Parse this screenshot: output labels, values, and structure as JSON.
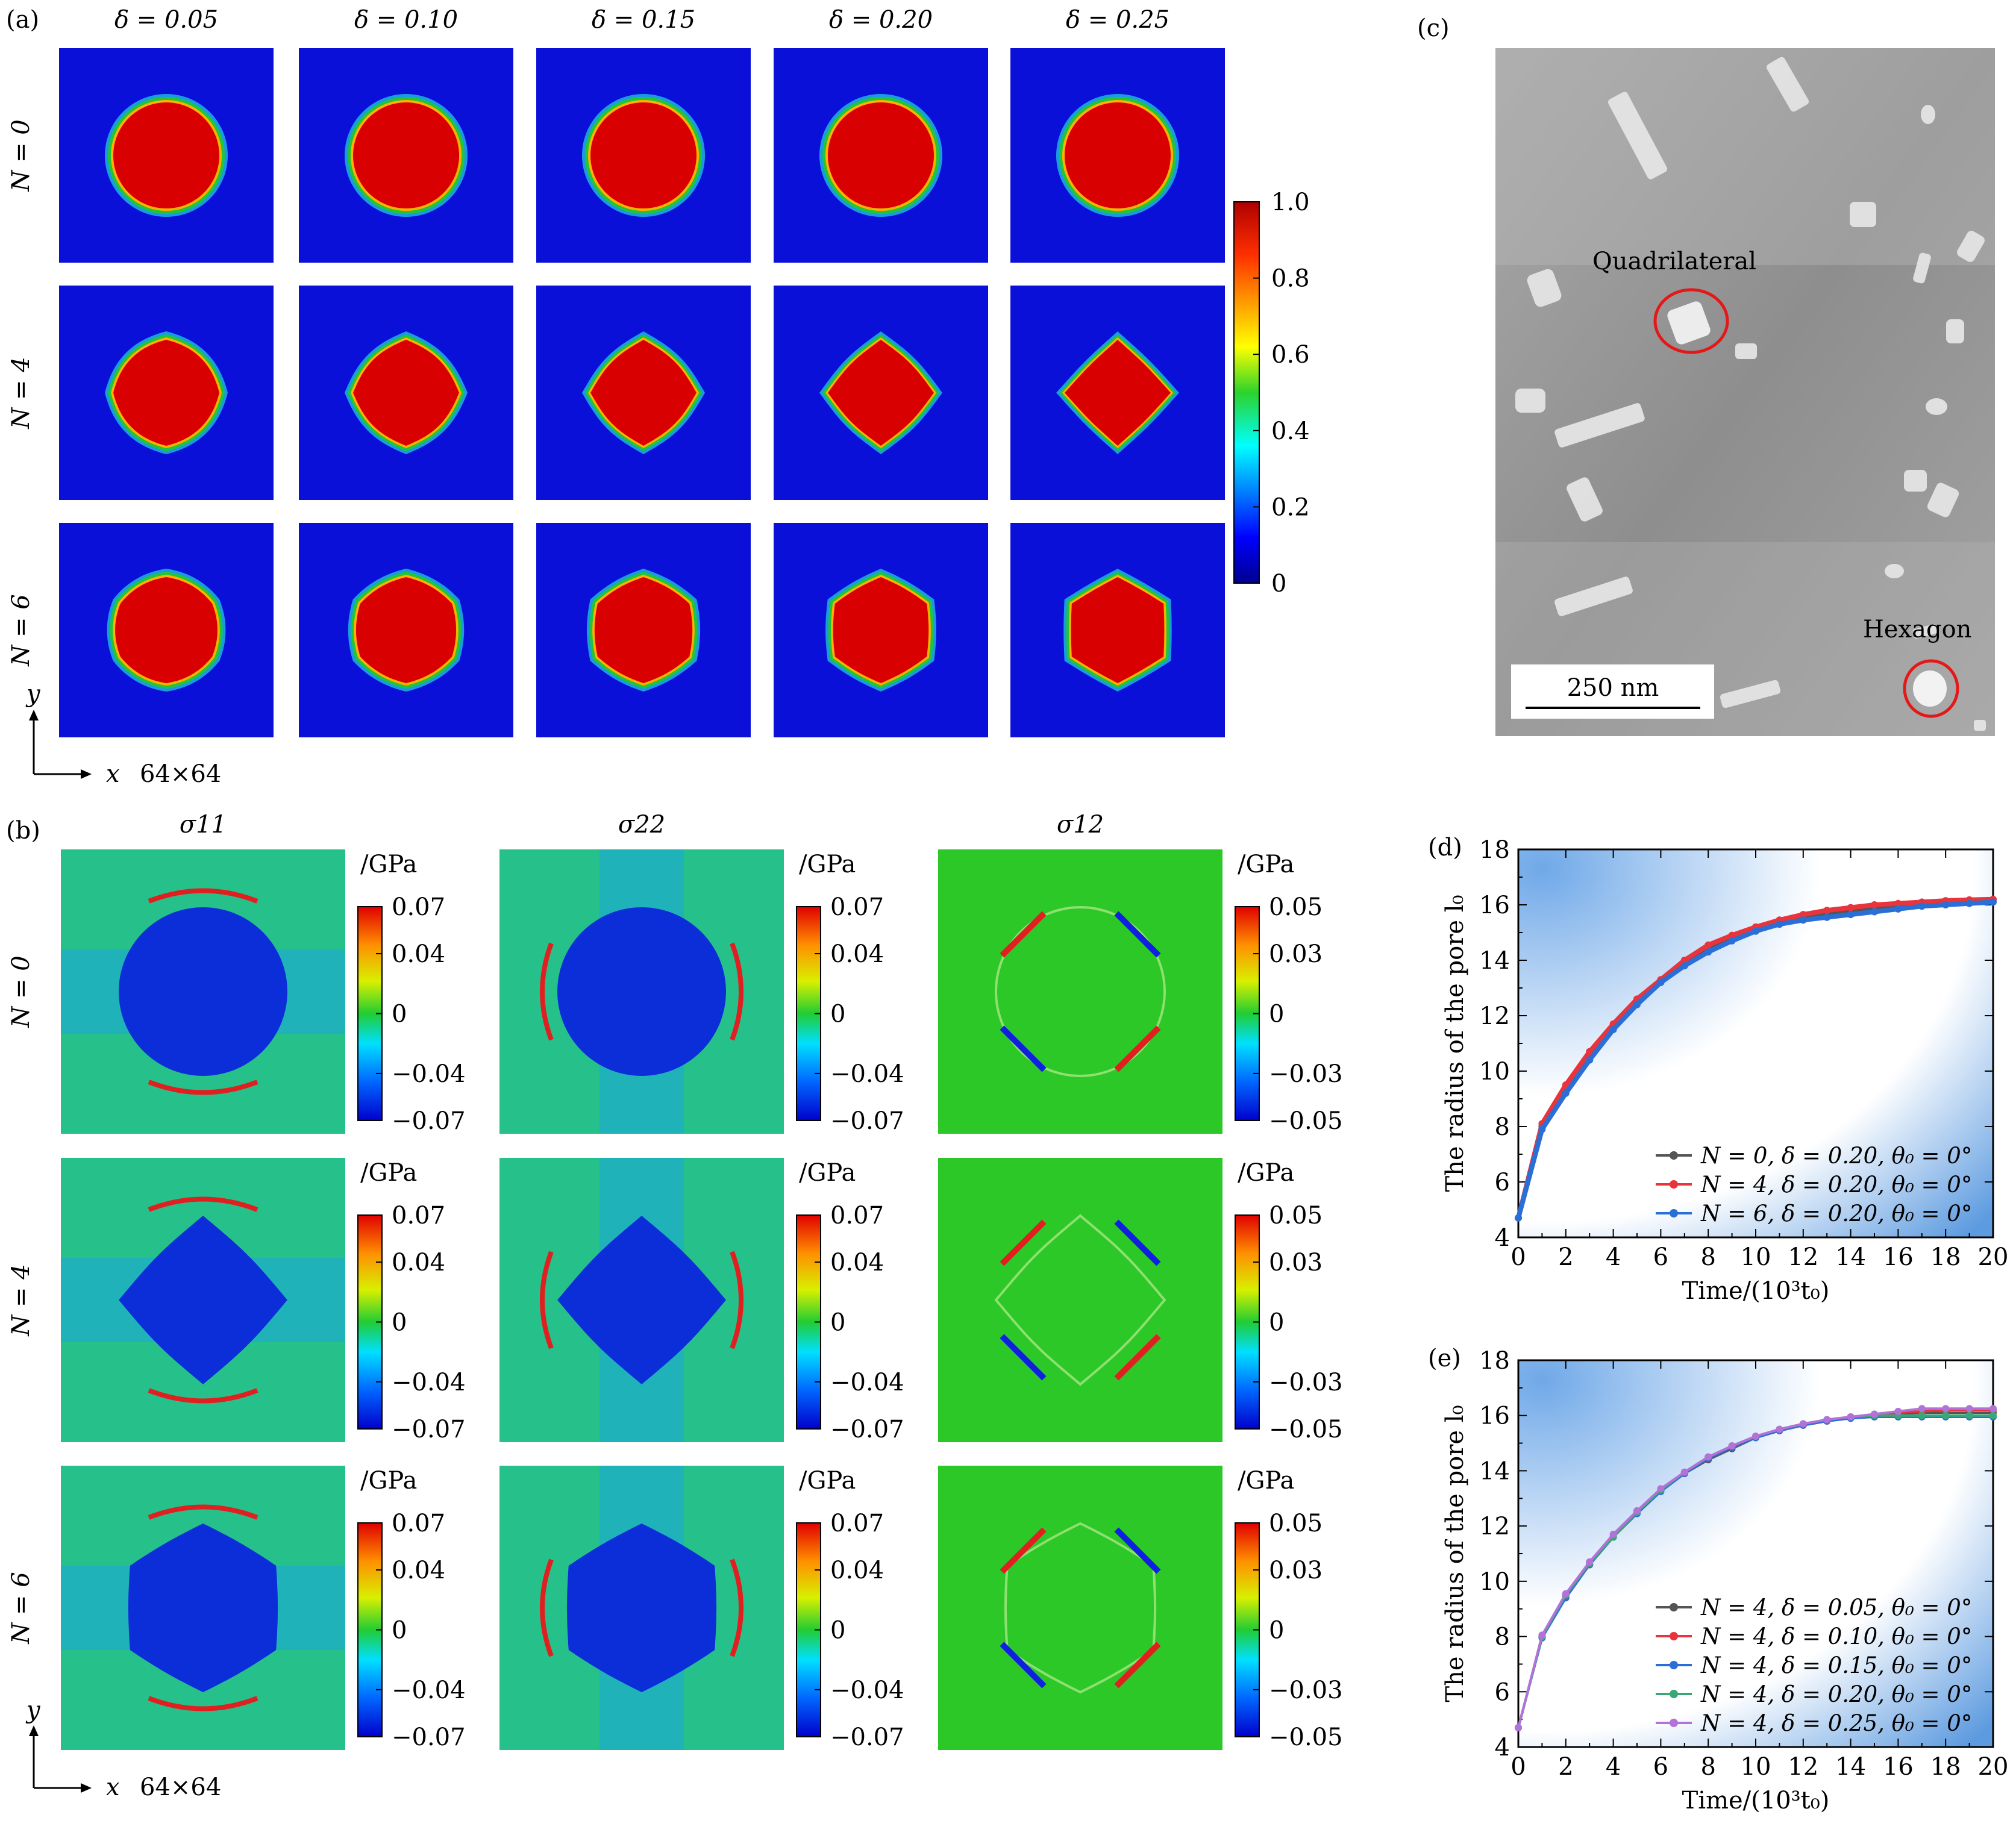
{
  "panel_labels": {
    "a": "(a)",
    "b": "(b)",
    "c": "(c)",
    "d": "(d)",
    "e": "(e)"
  },
  "panel_a": {
    "columns": [
      "δ = 0.05",
      "δ = 0.10",
      "δ = 0.15",
      "δ = 0.20",
      "δ = 0.25"
    ],
    "deltas": [
      0.05,
      0.1,
      0.15,
      0.2,
      0.25
    ],
    "rows": [
      "N = 0",
      "N = 4",
      "N = 6"
    ],
    "row_n": [
      0,
      4,
      6
    ],
    "colorbar_ticks": [
      "1.0",
      "0.8",
      "0.6",
      "0.4",
      "0.2",
      "0"
    ],
    "axis_y": "y",
    "axis_x": "x",
    "grid_size": "64×64"
  },
  "panel_b": {
    "columns": [
      "σ11",
      "σ22",
      "σ12"
    ],
    "rows": [
      "N = 0",
      "N = 4",
      "N = 6"
    ],
    "row_n": [
      0,
      4,
      6
    ],
    "unit": "/GPa",
    "colorbar_ticks_normal": [
      "0.07",
      "0.04",
      "0",
      "−0.04",
      "−0.07"
    ],
    "colorbar_ticks_shear": [
      "0.05",
      "0.03",
      "0",
      "−0.03",
      "−0.05"
    ],
    "axis_y": "y",
    "axis_x": "x",
    "grid_size": "64×64"
  },
  "panel_c": {
    "label_quadrilateral": "Quadrilateral",
    "label_hexagon": "Hexagon",
    "scale_bar": "250 nm"
  },
  "chart_data": [
    {
      "type": "line",
      "panel": "(d)",
      "xlabel": "Time/(10³t₀)",
      "ylabel": "The radius of the pore l₀",
      "xlim": [
        0,
        20
      ],
      "ylim": [
        4,
        18
      ],
      "xticks": [
        "0",
        "2",
        "4",
        "6",
        "8",
        "10",
        "12",
        "14",
        "16",
        "18",
        "20"
      ],
      "yticks": [
        "4",
        "6",
        "8",
        "10",
        "12",
        "14",
        "16",
        "18"
      ],
      "legend_position": "lower-right",
      "x": [
        0,
        1,
        2,
        3,
        4,
        5,
        6,
        7,
        8,
        9,
        10,
        11,
        12,
        13,
        14,
        15,
        16,
        17,
        18,
        19,
        20
      ],
      "series": [
        {
          "name": "N = 0, δ = 0.20, θ₀ = 0°",
          "color": "#555555",
          "values": [
            4.7,
            8.0,
            9.3,
            10.5,
            11.6,
            12.5,
            13.2,
            13.9,
            14.4,
            14.8,
            15.1,
            15.35,
            15.55,
            15.7,
            15.8,
            15.9,
            15.98,
            16.03,
            16.08,
            16.1,
            16.12
          ]
        },
        {
          "name": "N = 4, δ = 0.20, θ₀ = 0°",
          "color": "#e8343c",
          "values": [
            4.7,
            8.1,
            9.5,
            10.7,
            11.7,
            12.6,
            13.3,
            14.0,
            14.55,
            14.9,
            15.2,
            15.45,
            15.65,
            15.8,
            15.9,
            16.0,
            16.05,
            16.1,
            16.15,
            16.18,
            16.2
          ]
        },
        {
          "name": "N = 6, δ = 0.20, θ₀ = 0°",
          "color": "#2a6fd6",
          "values": [
            4.7,
            7.9,
            9.2,
            10.4,
            11.5,
            12.4,
            13.2,
            13.8,
            14.3,
            14.7,
            15.05,
            15.3,
            15.45,
            15.55,
            15.65,
            15.75,
            15.85,
            15.95,
            16.0,
            16.05,
            16.1
          ]
        }
      ]
    },
    {
      "type": "line",
      "panel": "(e)",
      "xlabel": "Time/(10³t₀)",
      "ylabel": "The radius of the pore l₀",
      "xlim": [
        0,
        20
      ],
      "ylim": [
        4,
        18
      ],
      "xticks": [
        "0",
        "2",
        "4",
        "6",
        "8",
        "10",
        "12",
        "14",
        "16",
        "18",
        "20"
      ],
      "yticks": [
        "4",
        "6",
        "8",
        "10",
        "12",
        "14",
        "16",
        "18"
      ],
      "legend_position": "lower-right",
      "x": [
        0,
        1,
        2,
        3,
        4,
        5,
        6,
        7,
        8,
        9,
        10,
        11,
        12,
        13,
        14,
        15,
        16,
        17,
        18,
        19,
        20
      ],
      "series": [
        {
          "name": "N = 4, δ = 0.05, θ₀ = 0°",
          "color": "#555555",
          "values": [
            4.7,
            8.0,
            9.5,
            10.6,
            11.6,
            12.5,
            13.3,
            13.9,
            14.4,
            14.8,
            15.2,
            15.45,
            15.65,
            15.8,
            15.9,
            16.0,
            16.05,
            16.1,
            16.1,
            16.1,
            16.1
          ]
        },
        {
          "name": "N = 4, δ = 0.10, θ₀ = 0°",
          "color": "#e8343c",
          "values": [
            4.7,
            8.0,
            9.5,
            10.6,
            11.6,
            12.5,
            13.3,
            13.9,
            14.45,
            14.85,
            15.2,
            15.45,
            15.65,
            15.8,
            15.9,
            16.0,
            16.1,
            16.15,
            16.2,
            16.2,
            16.2
          ]
        },
        {
          "name": "N = 4, δ = 0.15, θ₀ = 0°",
          "color": "#2a6fd6",
          "values": [
            4.7,
            7.95,
            9.4,
            10.6,
            11.6,
            12.45,
            13.25,
            13.9,
            14.45,
            14.85,
            15.2,
            15.45,
            15.65,
            15.8,
            15.9,
            15.95,
            15.95,
            15.95,
            15.95,
            15.95,
            15.95
          ]
        },
        {
          "name": "N = 4, δ = 0.20, θ₀ = 0°",
          "color": "#3aa876",
          "values": [
            4.7,
            8.0,
            9.5,
            10.65,
            11.6,
            12.5,
            13.3,
            13.95,
            14.5,
            14.9,
            15.25,
            15.5,
            15.7,
            15.85,
            15.95,
            16.0,
            16.0,
            16.0,
            16.0,
            16.0,
            16.0
          ]
        },
        {
          "name": "N = 4, δ = 0.25, θ₀ = 0°",
          "color": "#b272d8",
          "values": [
            4.7,
            8.05,
            9.55,
            10.7,
            11.7,
            12.55,
            13.35,
            13.95,
            14.5,
            14.9,
            15.25,
            15.5,
            15.7,
            15.85,
            15.95,
            16.05,
            16.15,
            16.25,
            16.25,
            16.25,
            16.25
          ]
        }
      ]
    }
  ]
}
